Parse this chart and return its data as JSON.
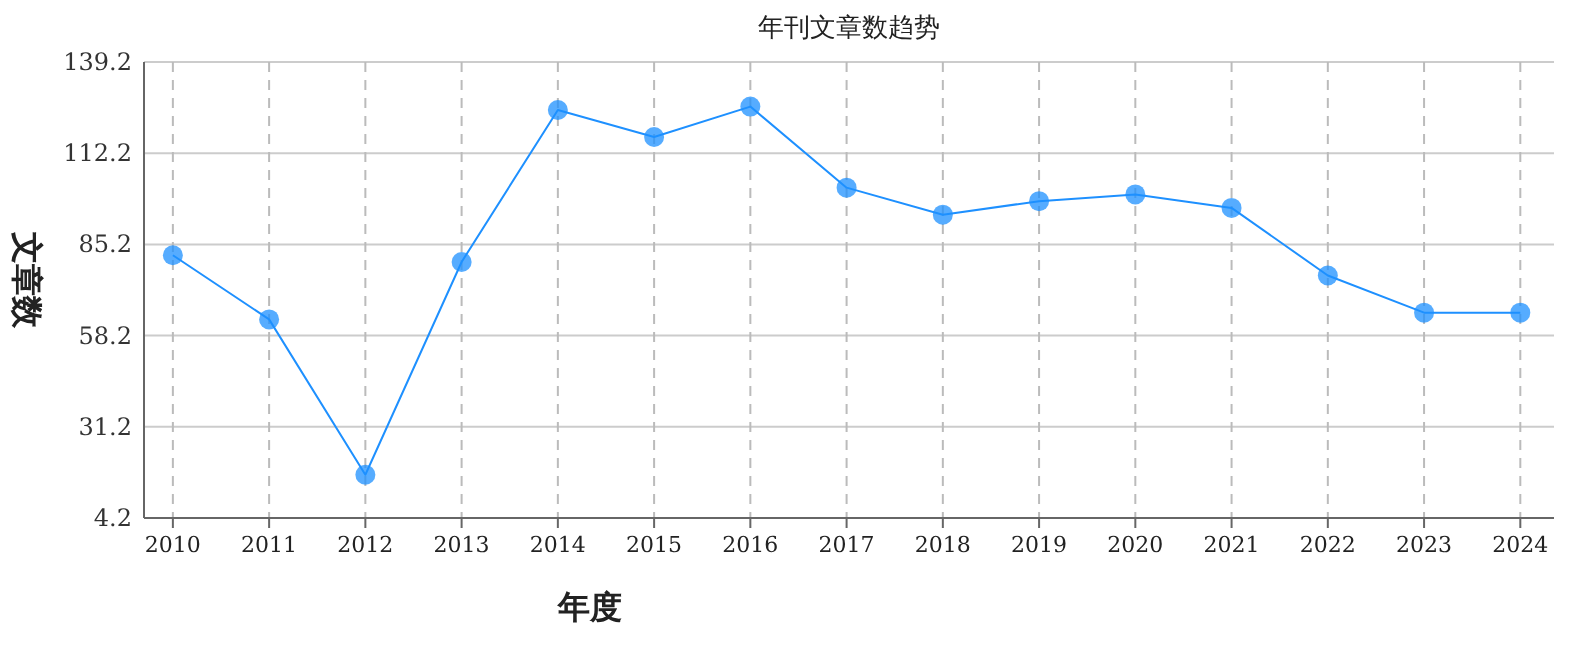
{
  "chart_data": {
    "type": "line",
    "title": "年刊文章数趋势",
    "xlabel": "年度",
    "ylabel": "文章数",
    "categories": [
      "2010",
      "2011",
      "2012",
      "2013",
      "2014",
      "2015",
      "2016",
      "2017",
      "2018",
      "2019",
      "2020",
      "2021",
      "2022",
      "2023",
      "2024"
    ],
    "series": [
      {
        "color": "#1e90ff",
        "values": [
          82,
          63,
          17,
          80,
          125,
          117,
          126,
          102,
          94,
          98,
          100,
          96,
          76,
          65,
          65
        ]
      }
    ],
    "ylim": [
      4.2,
      139.2
    ],
    "yticks": [
      4.2,
      31.2,
      58.2,
      85.2,
      112.2,
      139.2
    ],
    "grid": true,
    "marker": "circle"
  }
}
